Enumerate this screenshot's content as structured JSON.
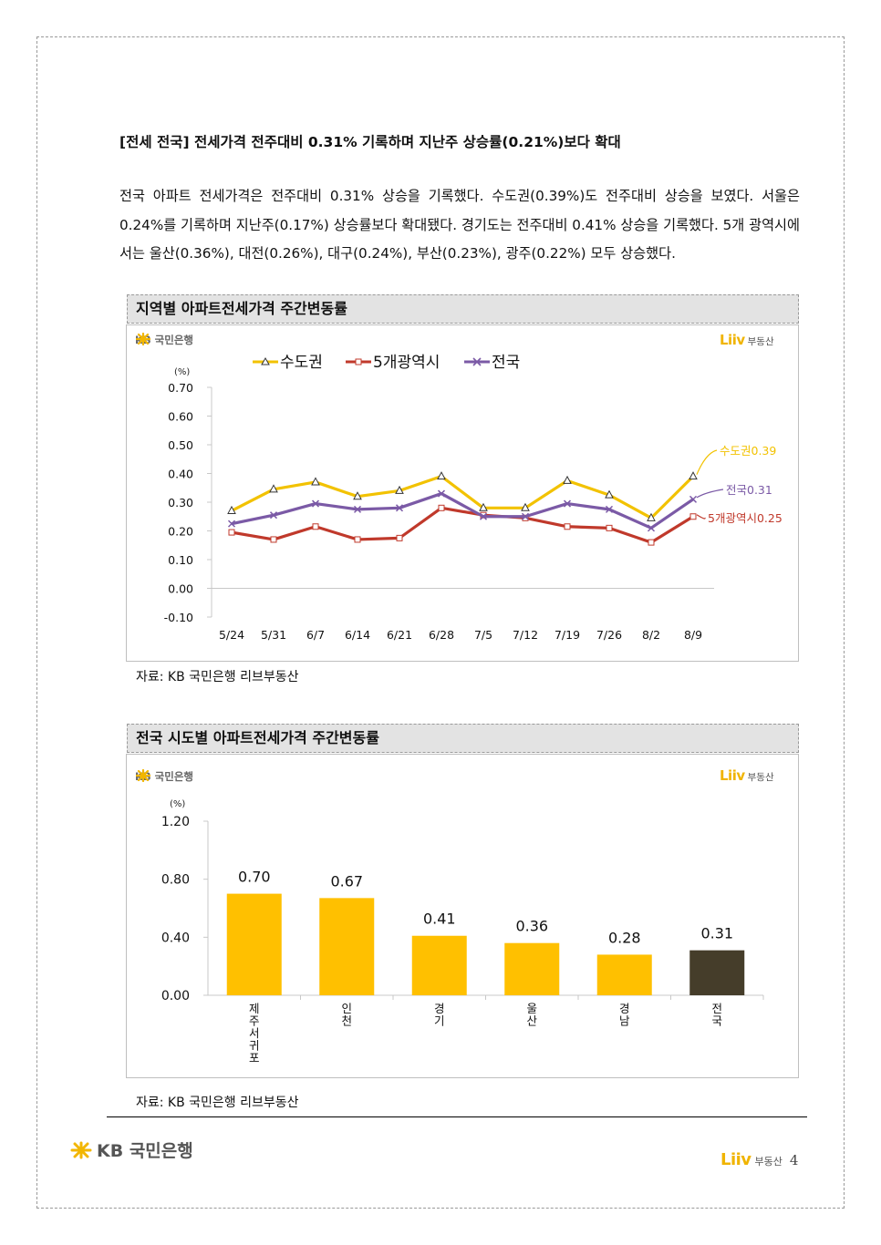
{
  "headline": "[전세 전국] 전세가격 전주대비 0.31% 기록하며 지난주 상승률(0.21%)보다 확대",
  "body_text": "전국 아파트 전세가격은 전주대비 0.31% 상승을 기록했다. 수도권(0.39%)도 전주대비 상승을 보였다. 서울은 0.24%를 기록하며 지난주(0.17%) 상승률보다 확대됐다. 경기도는 전주대비 0.41% 상승을 기록했다. 5개 광역시에서는 울산(0.36%), 대전(0.26%), 대구(0.24%), 부산(0.23%), 광주(0.22%) 모두 상승했다.",
  "logos": {
    "kb": "KB 국민은행",
    "liiv": "Liiv",
    "liiv_sub": "부동산"
  },
  "section1": {
    "title": "지역별 아파트전세가격 주간변동률",
    "source": "자료: KB 국민은행 리브부동산"
  },
  "section2": {
    "title": "전국 시도별 아파트전세가격 주간변동률",
    "source": "자료: KB 국민은행 리브부동산"
  },
  "footer": {
    "kb": "KB 국민은행",
    "liiv": "Liiv",
    "liiv_sub": "부동산",
    "page_number": "4"
  },
  "colors": {
    "capital": "#f2c200",
    "metro": "#c0392b",
    "national": "#7b5aa6",
    "bar": "#ffc000",
    "bar_highlight": "#453d2a"
  },
  "chart_data": [
    {
      "type": "line",
      "unit": "(%)",
      "categories": [
        "5/24",
        "5/31",
        "6/7",
        "6/14",
        "6/21",
        "6/28",
        "7/5",
        "7/12",
        "7/19",
        "7/26",
        "8/2",
        "8/9"
      ],
      "ylim": [
        -0.1,
        0.7
      ],
      "yticks": [
        "0.70",
        "0.60",
        "0.50",
        "0.40",
        "0.30",
        "0.20",
        "0.10",
        "0.00",
        "-0.10"
      ],
      "series": [
        {
          "name": "수도권",
          "values": [
            0.27,
            0.345,
            0.37,
            0.32,
            0.34,
            0.39,
            0.28,
            0.28,
            0.375,
            0.325,
            0.245,
            0.39
          ],
          "end_label": "수도권0.39"
        },
        {
          "name": "5개광역시",
          "values": [
            0.195,
            0.17,
            0.215,
            0.17,
            0.175,
            0.28,
            0.255,
            0.245,
            0.215,
            0.21,
            0.16,
            0.25
          ],
          "end_label": "5개광역시0.25"
        },
        {
          "name": "전국",
          "values": [
            0.225,
            0.255,
            0.295,
            0.275,
            0.28,
            0.33,
            0.25,
            0.25,
            0.295,
            0.275,
            0.21,
            0.31
          ],
          "end_label": "전국0.31"
        }
      ]
    },
    {
      "type": "bar",
      "unit": "(%)",
      "categories": [
        "제주서귀포",
        "인천",
        "경기",
        "울산",
        "경남",
        "전국"
      ],
      "values": [
        0.7,
        0.67,
        0.41,
        0.36,
        0.28,
        0.31
      ],
      "value_labels": [
        "0.70",
        "0.67",
        "0.41",
        "0.36",
        "0.28",
        "0.31"
      ],
      "highlight": "전국",
      "ylim": [
        0,
        1.2
      ],
      "yticks": [
        "1.20",
        "0.80",
        "0.40",
        "0.00"
      ]
    }
  ]
}
